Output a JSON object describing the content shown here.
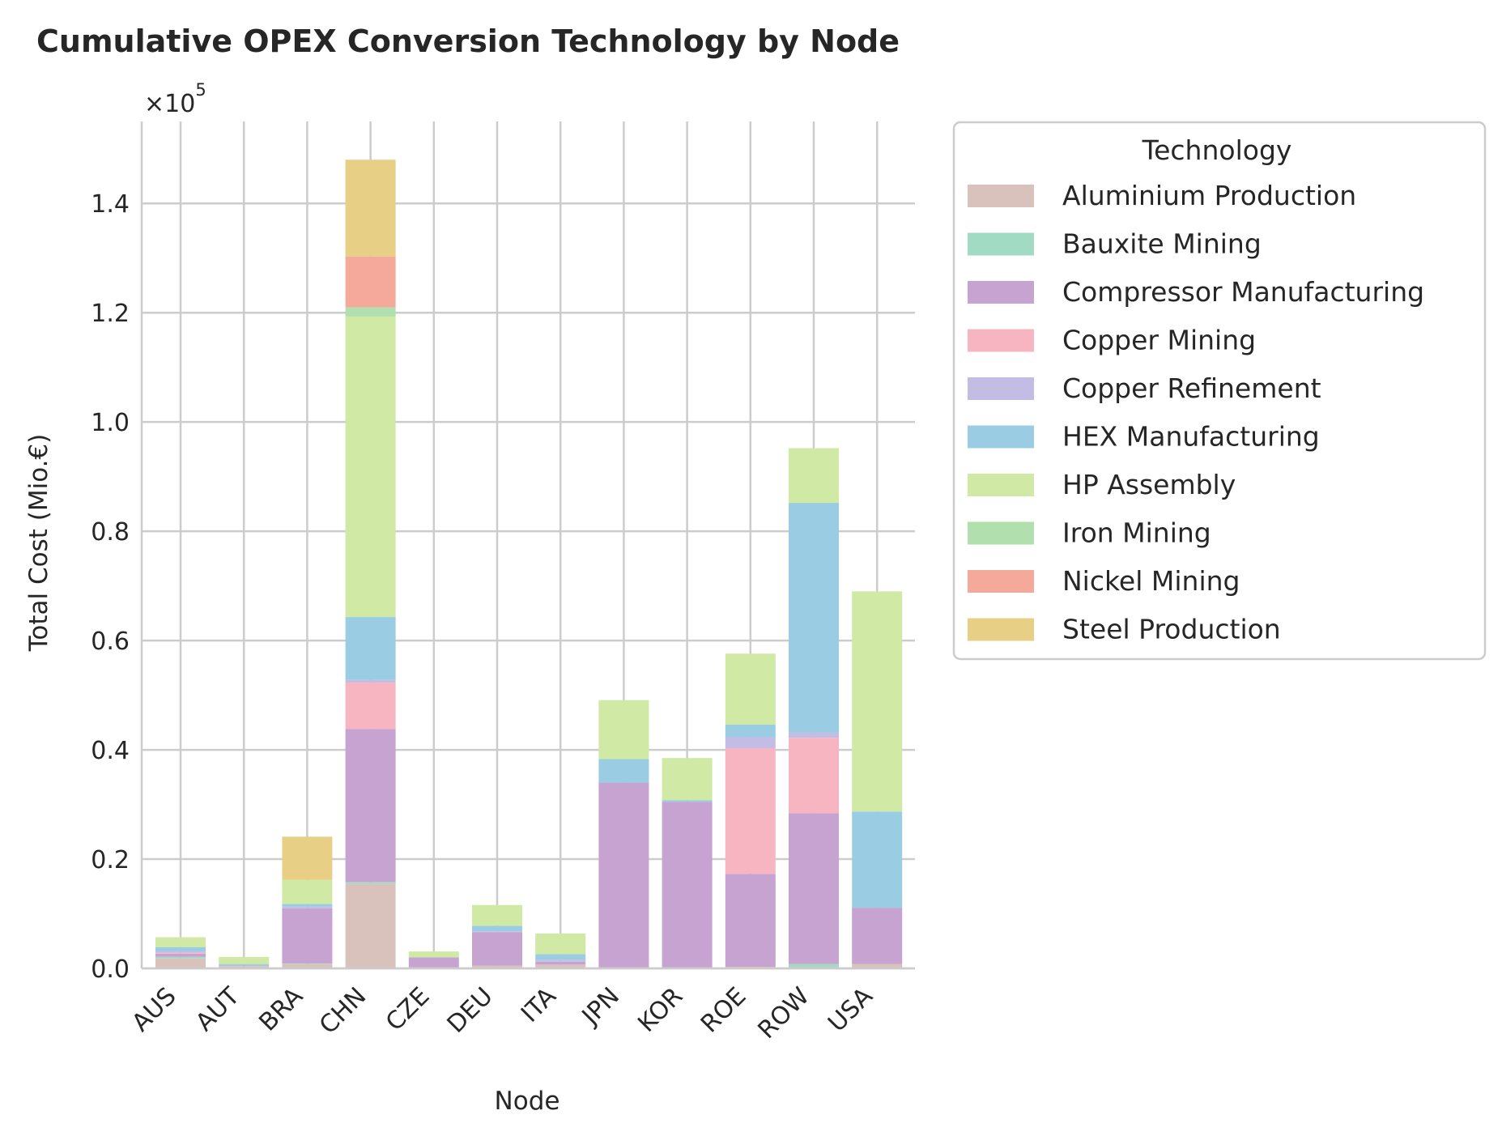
{
  "chart_data": {
    "type": "bar",
    "stacked": true,
    "title": "Cumulative OPEX Conversion Technology by Node",
    "xlabel": "Node",
    "ylabel": "Total Cost (Mio.€)",
    "y_offset_label": "×10",
    "y_offset_exponent": "5",
    "y_scale": 100000,
    "ylim": [
      0,
      1.55
    ],
    "yticks": [
      "0.0",
      "0.2",
      "0.4",
      "0.6",
      "0.8",
      "1.0",
      "1.2",
      "1.4"
    ],
    "grid": true,
    "legend_title": "Technology",
    "legend_position": "outside-right",
    "categories": [
      "AUS",
      "AUT",
      "BRA",
      "CHN",
      "CZE",
      "DEU",
      "ITA",
      "JPN",
      "KOR",
      "ROE",
      "ROW",
      "USA"
    ],
    "series": [
      {
        "name": "Aluminium Production",
        "color": "#d9c2bc",
        "values": [
          0.018,
          0.004,
          0.008,
          0.155,
          0.002,
          0.005,
          0.007,
          0.002,
          0.002,
          0.003,
          0.002,
          0.008
        ]
      },
      {
        "name": "Bauxite Mining",
        "color": "#a1dbc4",
        "values": [
          0.003,
          0.001,
          0.001,
          0.003,
          0.0,
          0.0,
          0.0,
          0.0,
          0.0,
          0.0,
          0.006,
          0.0
        ]
      },
      {
        "name": "Compressor Manufacturing",
        "color": "#c6a3d0",
        "values": [
          0.006,
          0.001,
          0.101,
          0.28,
          0.018,
          0.061,
          0.005,
          0.338,
          0.303,
          0.17,
          0.276,
          0.103
        ]
      },
      {
        "name": "Copper Mining",
        "color": "#f7b5c2",
        "values": [
          0.002,
          0.0,
          0.0,
          0.085,
          0.0,
          0.0,
          0.0,
          0.0,
          0.0,
          0.23,
          0.138,
          0.0
        ]
      },
      {
        "name": "Copper Refinement",
        "color": "#c3bde5",
        "values": [
          0.002,
          0.0,
          0.003,
          0.005,
          0.0,
          0.002,
          0.004,
          0.0,
          0.0,
          0.02,
          0.01,
          0.0
        ]
      },
      {
        "name": "HEX Manufacturing",
        "color": "#9acde3",
        "values": [
          0.008,
          0.002,
          0.005,
          0.115,
          0.0,
          0.01,
          0.01,
          0.043,
          0.003,
          0.023,
          0.42,
          0.176
        ]
      },
      {
        "name": "HP Assembly",
        "color": "#d0e9a5",
        "values": [
          0.018,
          0.013,
          0.044,
          0.55,
          0.011,
          0.038,
          0.038,
          0.108,
          0.077,
          0.13,
          0.1,
          0.403
        ]
      },
      {
        "name": "Iron Mining",
        "color": "#b1dfae",
        "values": [
          0.0,
          0.0,
          0.0,
          0.017,
          0.0,
          0.0,
          0.0,
          0.0,
          0.0,
          0.0,
          0.0,
          0.0
        ]
      },
      {
        "name": "Nickel Mining",
        "color": "#f4a99b",
        "values": [
          0.0,
          0.0,
          0.0,
          0.093,
          0.0,
          0.0,
          0.0,
          0.0,
          0.0,
          0.0,
          0.0,
          0.0
        ]
      },
      {
        "name": "Steel Production",
        "color": "#e7d086",
        "values": [
          0.0,
          0.0,
          0.079,
          0.177,
          0.0,
          0.0,
          0.0,
          0.0,
          0.0,
          0.0,
          0.0,
          0.0
        ]
      }
    ]
  }
}
